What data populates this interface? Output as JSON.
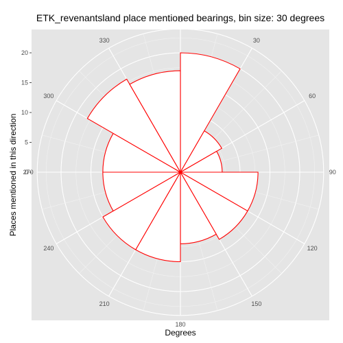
{
  "chart_data": {
    "type": "bar",
    "coord": "polar",
    "title": "ETK_revenantsland place mentioned bearings, bin size: 30 degrees",
    "xlabel": "Degrees",
    "ylabel": "Places mentioned in this direction",
    "angle_ticks": [
      "0",
      "30",
      "60",
      "90",
      "120",
      "150",
      "180",
      "210",
      "240",
      "270",
      "300",
      "330"
    ],
    "radial_ticks": [
      "0",
      "5",
      "10",
      "15",
      "20"
    ],
    "radial_tick_values": [
      0,
      5,
      10,
      15,
      20
    ],
    "rlim": [
      0,
      24
    ],
    "bin_size": 30,
    "bins_start": [
      0,
      30,
      60,
      90,
      120,
      150,
      180,
      210,
      240,
      270,
      300,
      330
    ],
    "values": [
      20,
      8,
      7,
      13,
      13,
      12,
      15,
      15,
      13,
      13,
      18,
      17
    ],
    "bar_fill": "#ffffff",
    "bar_outline": "#ff0000",
    "panel_color": "#e5e5e5",
    "grid_color": "#ffffff",
    "grid": true
  }
}
